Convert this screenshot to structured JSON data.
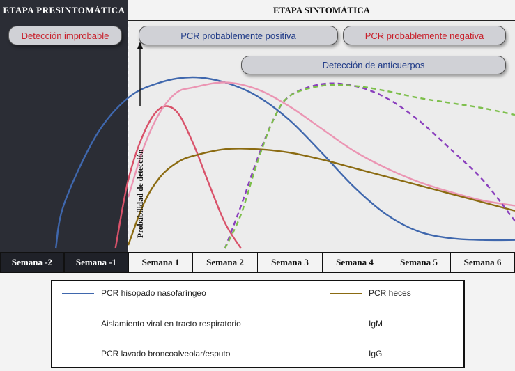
{
  "header": {
    "presymptomatic": "ETAPA PRESINTOMÁTICA",
    "symptomatic": "ETAPA SINTOMÁTICA"
  },
  "pills": {
    "unlikely": "Detección improbable",
    "pcr_positive": "PCR probablemente positiva",
    "pcr_negative": "PCR probablemente negativa",
    "antibodies": "Detección de anticuerpos"
  },
  "colors": {
    "pcr_nasopharyngeal": "#3f67ad",
    "viral_isolation": "#d9526a",
    "pcr_bal": "#eb95b3",
    "pcr_stool": "#8b6b12",
    "igm": "#8a3fbd",
    "igg": "#7dbf4b",
    "pill_red_text": "#c8202b",
    "pill_blue_text": "#1f3a87"
  },
  "chart_data": {
    "type": "line",
    "title": "",
    "ylabel": "Probabilidad de detección",
    "x_tick_labels": [
      "Semana -2",
      "Semana -1",
      "Semana 1",
      "Semana 2",
      "Semana 3",
      "Semana 4",
      "Semana 5",
      "Semana 6"
    ],
    "xlim": [
      -2,
      6
    ],
    "ylim": [
      0,
      1
    ],
    "series": [
      {
        "name": "PCR hisopado nasofaríngeo",
        "key": "pcr_nasopharyngeal",
        "dash": false,
        "x": [
          -1.13,
          -1.0,
          -0.5,
          0.0,
          0.5,
          1.0,
          1.5,
          2.0,
          2.5,
          3.0,
          3.5,
          4.0,
          4.5,
          5.0,
          5.5,
          6.0
        ],
        "y": [
          0.0,
          0.26,
          0.66,
          0.88,
          0.97,
          1.0,
          0.97,
          0.89,
          0.75,
          0.56,
          0.36,
          0.2,
          0.1,
          0.06,
          0.05,
          0.05
        ]
      },
      {
        "name": "Aislamiento viral en tracto respiratorio",
        "key": "viral_isolation",
        "dash": false,
        "x": [
          -0.2,
          0.0,
          0.25,
          0.5,
          0.75,
          1.0,
          1.25,
          1.5,
          1.75
        ],
        "y": [
          0.0,
          0.4,
          0.68,
          0.82,
          0.8,
          0.62,
          0.38,
          0.15,
          0.0
        ]
      },
      {
        "name": "PCR lavado broncoalveolar/esputo",
        "key": "pcr_bal",
        "dash": false,
        "x": [
          0.0,
          0.25,
          0.5,
          0.75,
          1.0,
          1.5,
          2.0,
          2.5,
          3.0,
          3.5,
          4.0,
          4.5,
          5.0,
          5.5,
          6.0
        ],
        "y": [
          0.3,
          0.6,
          0.8,
          0.91,
          0.94,
          0.97,
          0.93,
          0.83,
          0.7,
          0.57,
          0.47,
          0.39,
          0.33,
          0.28,
          0.25
        ]
      },
      {
        "name": "PCR heces",
        "key": "pcr_stool",
        "dash": false,
        "x": [
          0.0,
          0.25,
          0.5,
          0.75,
          1.0,
          1.5,
          2.0,
          2.5,
          3.0,
          3.5,
          4.0,
          4.5,
          5.0,
          5.5,
          6.0
        ],
        "y": [
          0.02,
          0.27,
          0.42,
          0.5,
          0.54,
          0.58,
          0.58,
          0.56,
          0.52,
          0.47,
          0.42,
          0.37,
          0.32,
          0.27,
          0.22
        ]
      },
      {
        "name": "IgM",
        "key": "igm",
        "dash": true,
        "x": [
          1.5,
          1.75,
          2.0,
          2.25,
          2.5,
          3.0,
          3.5,
          4.0,
          4.5,
          5.0,
          5.5,
          6.0
        ],
        "y": [
          0.0,
          0.25,
          0.52,
          0.75,
          0.89,
          0.96,
          0.95,
          0.88,
          0.75,
          0.58,
          0.4,
          0.16
        ]
      },
      {
        "name": "IgG",
        "key": "igg",
        "dash": true,
        "x": [
          1.5,
          1.75,
          2.0,
          2.25,
          2.5,
          3.0,
          3.5,
          4.0,
          4.5,
          5.0,
          5.5,
          6.0
        ],
        "y": [
          0.0,
          0.2,
          0.5,
          0.75,
          0.89,
          0.95,
          0.95,
          0.92,
          0.88,
          0.85,
          0.82,
          0.78
        ]
      }
    ]
  }
}
